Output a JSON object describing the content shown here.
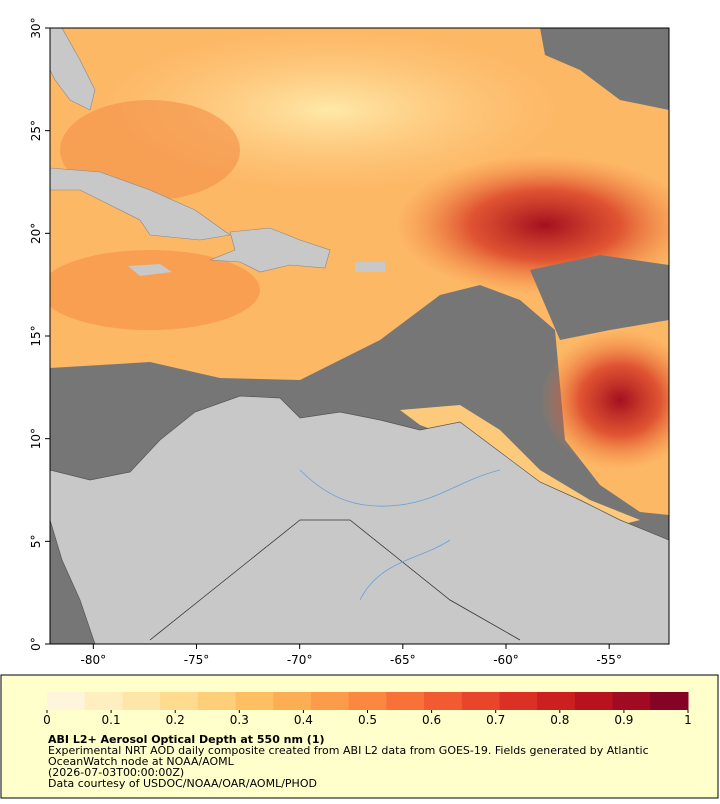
{
  "map": {
    "xlim": [
      -82.1,
      -52.1
    ],
    "ylim": [
      0,
      30
    ],
    "xticks": [
      {
        "value": -80,
        "label": "-80°"
      },
      {
        "value": -75,
        "label": "-75°"
      },
      {
        "value": -70,
        "label": "-70°"
      },
      {
        "value": -65,
        "label": "-65°"
      },
      {
        "value": -60,
        "label": "-60°"
      },
      {
        "value": -55,
        "label": "-55°"
      }
    ],
    "yticks": [
      {
        "value": 0,
        "label": "0°"
      },
      {
        "value": 5,
        "label": "5°"
      },
      {
        "value": 10,
        "label": "10°"
      },
      {
        "value": 15,
        "label": "15°"
      },
      {
        "value": 20,
        "label": "20°"
      },
      {
        "value": 25,
        "label": "25°"
      },
      {
        "value": 30,
        "label": "30°"
      }
    ]
  },
  "colorbar": {
    "lim": [
      0,
      1
    ],
    "ticks": [
      0,
      0.1,
      0.2,
      0.3,
      0.4,
      0.5,
      0.6,
      0.7,
      0.8,
      0.9,
      1
    ],
    "colors": [
      "#fff5dc",
      "#ffeec0",
      "#fee6a8",
      "#fedb8e",
      "#fecf78",
      "#fdbf62",
      "#fdae55",
      "#fc9b4a",
      "#fb8740",
      "#f87139",
      "#f25b31",
      "#e8452a",
      "#db3024",
      "#cc1f20",
      "#b8121f",
      "#a00a22",
      "#850324"
    ]
  },
  "caption": {
    "title": "ABI L2+ Aerosol Optical Depth at 550 nm (1)",
    "lines": [
      "Experimental NRT AOD daily composite created from ABI L2 data from GOES-19. Fields generated by Atlantic",
      "OceanWatch node at NOAA/AOML",
      "(2026-07-03T00:00:00Z)",
      "Data courtesy of USDOC/NOAA/OAR/AOML/PHOD"
    ]
  }
}
